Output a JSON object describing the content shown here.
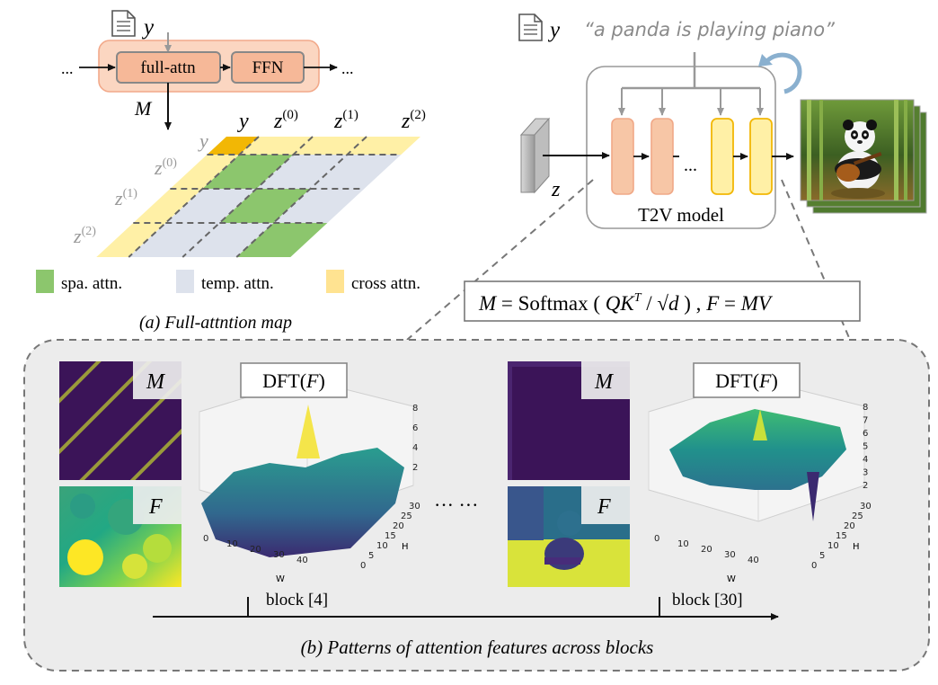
{
  "panel_a": {
    "doc_label": "y",
    "ellipsis_left": "...",
    "ellipsis_right": "...",
    "block_full_attn": "full-attn",
    "block_ffn": "FFN",
    "m_label": "M",
    "col_labels": [
      "y",
      "z(0)",
      "z(1)",
      "z(2)"
    ],
    "row_labels": [
      "y",
      "z(0)",
      "z(1)",
      "z(2)"
    ],
    "legend": [
      {
        "label": "spa. attn.",
        "color": "#8cc66d"
      },
      {
        "label": "temp. attn.",
        "color": "#dde2ec"
      },
      {
        "label": "cross attn.",
        "color": "#ffe391"
      }
    ],
    "caption": "(a) Full-attntion map"
  },
  "panel_t2v": {
    "doc_label": "y",
    "prompt": "“a panda is playing piano”",
    "z_label": "z",
    "ellipsis": "...",
    "model_label": "T2V model",
    "formula": "M = Softmax ( QKᵀ / √d ) , F = MV"
  },
  "panel_b": {
    "caption": "(b) Patterns of attention features across blocks",
    "ellipsis": "··· ···",
    "blocks": [
      {
        "label": "block [4]",
        "m_tag": "M",
        "f_tag": "F",
        "dft_title": "DFT(F)",
        "z_ticks": [
          "2",
          "4",
          "6",
          "8"
        ],
        "w_ticks": [
          "0",
          "10",
          "20",
          "30",
          "40"
        ],
        "h_ticks": [
          "0",
          "5",
          "10",
          "15",
          "20",
          "25",
          "30"
        ],
        "w_label": "W",
        "h_label": "H"
      },
      {
        "label": "block [30]",
        "m_tag": "M",
        "f_tag": "F",
        "dft_title": "DFT(F)",
        "z_ticks": [
          "2",
          "3",
          "4",
          "5",
          "6",
          "7",
          "8"
        ],
        "w_ticks": [
          "0",
          "10",
          "20",
          "30",
          "40"
        ],
        "h_ticks": [
          "0",
          "5",
          "10",
          "15",
          "20",
          "25",
          "30"
        ],
        "w_label": "W",
        "h_label": "H"
      }
    ]
  },
  "colors": {
    "block_fill": "#f6c8b0",
    "block_stroke": "#888888",
    "ffn_fill": "#f7b99b",
    "orange_token": "#f7c6a6",
    "yellow_token": "#fff0a6",
    "yellow_stroke": "#f2b705",
    "panel_bg": "#ececec",
    "dark_purple": "#3b1458"
  }
}
